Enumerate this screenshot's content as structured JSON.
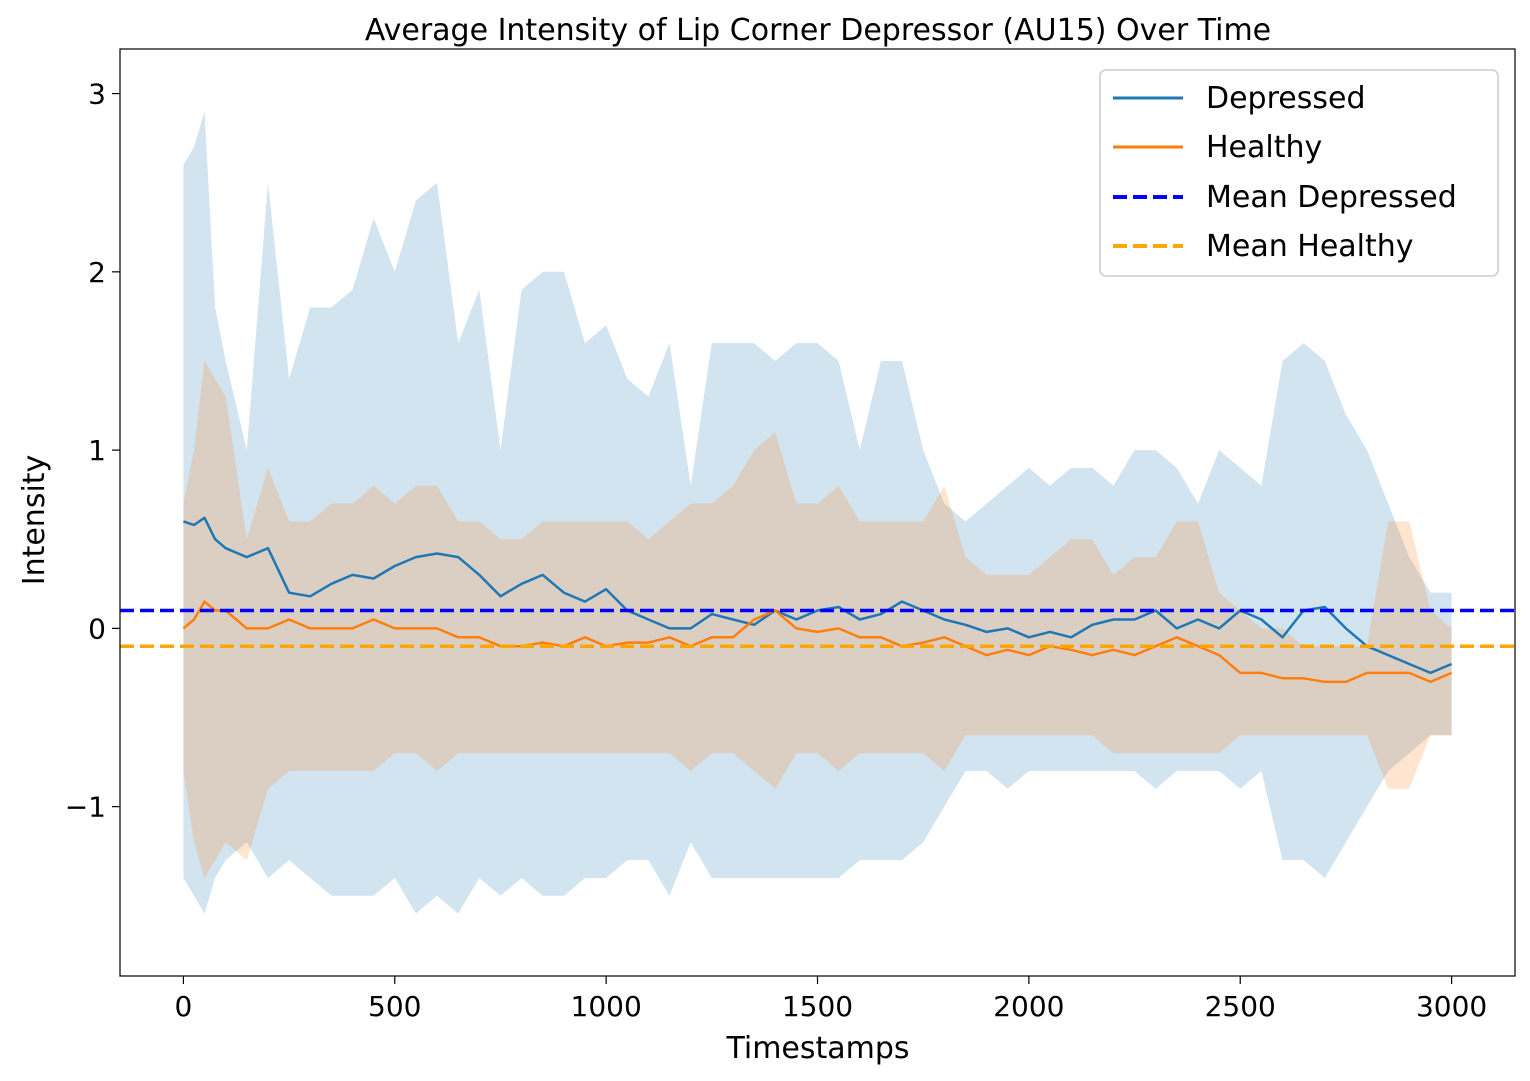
{
  "chart_data": {
    "type": "line",
    "title": "Average Intensity of Lip Corner Depressor (AU15) Over Time",
    "xlabel": "Timestamps",
    "ylabel": "Intensity",
    "xlim": [
      -150,
      3150
    ],
    "ylim": [
      -1.95,
      3.25
    ],
    "xticks": [
      0,
      500,
      1000,
      1500,
      2000,
      2500,
      3000
    ],
    "xtick_labels": [
      "0",
      "500",
      "1000",
      "1500",
      "2000",
      "2500",
      "3000"
    ],
    "yticks": [
      -1,
      0,
      1,
      2,
      3
    ],
    "ytick_labels": [
      "−1",
      "0",
      "1",
      "2",
      "3"
    ],
    "grid": false,
    "legend_position": "top-right",
    "x": [
      0,
      25,
      50,
      75,
      100,
      150,
      200,
      250,
      300,
      350,
      400,
      450,
      500,
      550,
      600,
      650,
      700,
      750,
      800,
      850,
      900,
      950,
      1000,
      1050,
      1100,
      1150,
      1200,
      1250,
      1300,
      1350,
      1400,
      1450,
      1500,
      1550,
      1600,
      1650,
      1700,
      1750,
      1800,
      1850,
      1900,
      1950,
      2000,
      2050,
      2100,
      2150,
      2200,
      2250,
      2300,
      2350,
      2400,
      2450,
      2500,
      2550,
      2600,
      2650,
      2700,
      2750,
      2800,
      2850,
      2900,
      2950,
      3000
    ],
    "series": [
      {
        "name": "Depressed",
        "color": "#1f77b4",
        "values": [
          0.6,
          0.58,
          0.62,
          0.5,
          0.45,
          0.4,
          0.45,
          0.2,
          0.18,
          0.25,
          0.3,
          0.28,
          0.35,
          0.4,
          0.42,
          0.4,
          0.3,
          0.18,
          0.25,
          0.3,
          0.2,
          0.15,
          0.22,
          0.1,
          0.05,
          0.0,
          0.0,
          0.08,
          0.05,
          0.02,
          0.1,
          0.05,
          0.1,
          0.12,
          0.05,
          0.08,
          0.15,
          0.1,
          0.05,
          0.02,
          -0.02,
          0.0,
          -0.05,
          -0.02,
          -0.05,
          0.02,
          0.05,
          0.05,
          0.1,
          0.0,
          0.05,
          0.0,
          0.1,
          0.05,
          -0.05,
          0.1,
          0.12,
          0.0,
          -0.1,
          -0.15,
          -0.2,
          -0.25,
          -0.2
        ]
      },
      {
        "name": "Healthy",
        "color": "#ff7f0e",
        "values": [
          0.0,
          0.05,
          0.15,
          0.1,
          0.1,
          0.0,
          0.0,
          0.05,
          0.0,
          0.0,
          0.0,
          0.05,
          0.0,
          0.0,
          0.0,
          -0.05,
          -0.05,
          -0.1,
          -0.1,
          -0.08,
          -0.1,
          -0.05,
          -0.1,
          -0.08,
          -0.08,
          -0.05,
          -0.1,
          -0.05,
          -0.05,
          0.05,
          0.1,
          0.0,
          -0.02,
          0.0,
          -0.05,
          -0.05,
          -0.1,
          -0.08,
          -0.05,
          -0.1,
          -0.15,
          -0.12,
          -0.15,
          -0.1,
          -0.12,
          -0.15,
          -0.12,
          -0.15,
          -0.1,
          -0.05,
          -0.1,
          -0.15,
          -0.25,
          -0.25,
          -0.28,
          -0.28,
          -0.3,
          -0.3,
          -0.25,
          -0.25,
          -0.25,
          -0.3,
          -0.25
        ]
      },
      {
        "name": "Mean Depressed",
        "color": "#0000ff",
        "style": "dashed",
        "constant": 0.1
      },
      {
        "name": "Mean Healthy",
        "color": "#ffa500",
        "style": "dashed",
        "constant": -0.1
      }
    ],
    "bands": [
      {
        "name": "Depressed ±std",
        "color": "#1f77b4",
        "opacity": 0.2,
        "upper": [
          2.6,
          2.7,
          2.9,
          1.8,
          1.5,
          1.0,
          2.5,
          1.4,
          1.8,
          1.8,
          1.9,
          2.3,
          2.0,
          2.4,
          2.5,
          1.6,
          1.9,
          1.0,
          1.9,
          2.0,
          2.0,
          1.6,
          1.7,
          1.4,
          1.3,
          1.6,
          0.8,
          1.6,
          1.6,
          1.6,
          1.5,
          1.6,
          1.6,
          1.5,
          1.0,
          1.5,
          1.5,
          1.0,
          0.7,
          0.6,
          0.7,
          0.8,
          0.9,
          0.8,
          0.9,
          0.9,
          0.8,
          1.0,
          1.0,
          0.9,
          0.7,
          1.0,
          0.9,
          0.8,
          1.5,
          1.6,
          1.5,
          1.2,
          1.0,
          0.7,
          0.4,
          0.2,
          0.2
        ]
      },
      {
        "name": "Depressed ±std lower",
        "color": "#1f77b4",
        "opacity": 0.2,
        "lower": [
          -1.4,
          -1.5,
          -1.6,
          -1.4,
          -1.3,
          -1.2,
          -1.4,
          -1.3,
          -1.4,
          -1.5,
          -1.5,
          -1.5,
          -1.4,
          -1.6,
          -1.5,
          -1.6,
          -1.4,
          -1.5,
          -1.4,
          -1.5,
          -1.5,
          -1.4,
          -1.4,
          -1.3,
          -1.3,
          -1.5,
          -1.2,
          -1.4,
          -1.4,
          -1.4,
          -1.4,
          -1.4,
          -1.4,
          -1.4,
          -1.3,
          -1.3,
          -1.3,
          -1.2,
          -1.0,
          -0.8,
          -0.8,
          -0.9,
          -0.8,
          -0.8,
          -0.8,
          -0.8,
          -0.8,
          -0.8,
          -0.9,
          -0.8,
          -0.8,
          -0.8,
          -0.9,
          -0.8,
          -1.3,
          -1.3,
          -1.4,
          -1.2,
          -1.0,
          -0.8,
          -0.7,
          -0.6,
          -0.6
        ]
      },
      {
        "name": "Healthy ±std",
        "color": "#ff7f0e",
        "opacity": 0.2,
        "upper": [
          0.7,
          1.0,
          1.5,
          1.4,
          1.3,
          0.5,
          0.9,
          0.6,
          0.6,
          0.7,
          0.7,
          0.8,
          0.7,
          0.8,
          0.8,
          0.6,
          0.6,
          0.5,
          0.5,
          0.6,
          0.6,
          0.6,
          0.6,
          0.6,
          0.5,
          0.6,
          0.7,
          0.7,
          0.8,
          1.0,
          1.1,
          0.7,
          0.7,
          0.8,
          0.6,
          0.6,
          0.6,
          0.6,
          0.8,
          0.4,
          0.3,
          0.3,
          0.3,
          0.4,
          0.5,
          0.5,
          0.3,
          0.4,
          0.4,
          0.6,
          0.6,
          0.2,
          0.1,
          0.0,
          0.0,
          -0.1,
          -0.1,
          -0.1,
          -0.1,
          0.6,
          0.6,
          0.1,
          0.0
        ]
      },
      {
        "name": "Healthy ±std lower",
        "color": "#ff7f0e",
        "opacity": 0.2,
        "lower": [
          -0.8,
          -1.2,
          -1.4,
          -1.3,
          -1.2,
          -1.3,
          -0.9,
          -0.8,
          -0.8,
          -0.8,
          -0.8,
          -0.8,
          -0.7,
          -0.7,
          -0.8,
          -0.7,
          -0.7,
          -0.7,
          -0.7,
          -0.7,
          -0.7,
          -0.7,
          -0.7,
          -0.7,
          -0.7,
          -0.7,
          -0.8,
          -0.7,
          -0.7,
          -0.8,
          -0.9,
          -0.7,
          -0.7,
          -0.8,
          -0.7,
          -0.7,
          -0.7,
          -0.7,
          -0.8,
          -0.6,
          -0.6,
          -0.6,
          -0.6,
          -0.6,
          -0.6,
          -0.6,
          -0.7,
          -0.7,
          -0.7,
          -0.7,
          -0.7,
          -0.7,
          -0.6,
          -0.6,
          -0.6,
          -0.6,
          -0.6,
          -0.6,
          -0.6,
          -0.9,
          -0.9,
          -0.6,
          -0.6
        ]
      }
    ]
  },
  "legend": {
    "items": [
      "Depressed",
      "Healthy",
      "Mean Depressed",
      "Mean Healthy"
    ]
  }
}
